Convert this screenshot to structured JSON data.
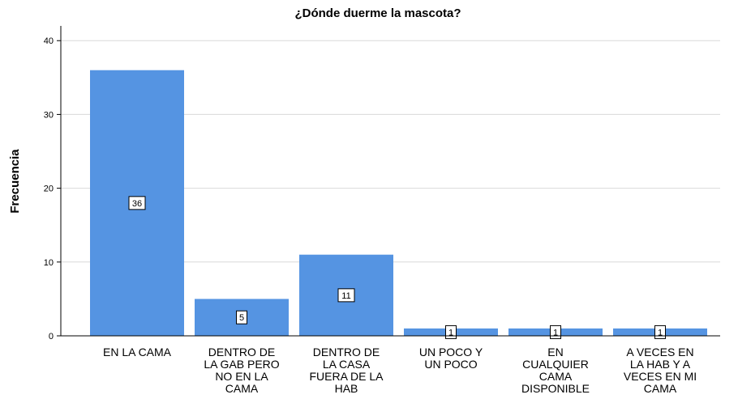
{
  "chart_data": {
    "type": "bar",
    "title": "¿Dónde duerme la mascota?",
    "y_label": "Frecuencia",
    "categories": [
      "EN LA CAMA",
      "DENTRO DE\nLA GAB PERO\nNO EN LA\nCAMA",
      "DENTRO DE\nLA CASA\nFUERA DE LA\nHAB",
      "UN POCO Y\nUN POCO",
      "EN\nCUALQUIER\nCAMA\nDISPONIBLE",
      "A VECES EN\nLA HAB Y A\nVECES EN MI\nCAMA"
    ],
    "values": [
      36,
      5,
      11,
      1,
      1,
      1
    ],
    "color": "#5594e2",
    "ylim": [
      0,
      42
    ],
    "yticks": [
      0,
      10,
      20,
      30,
      40
    ],
    "grid": true
  }
}
